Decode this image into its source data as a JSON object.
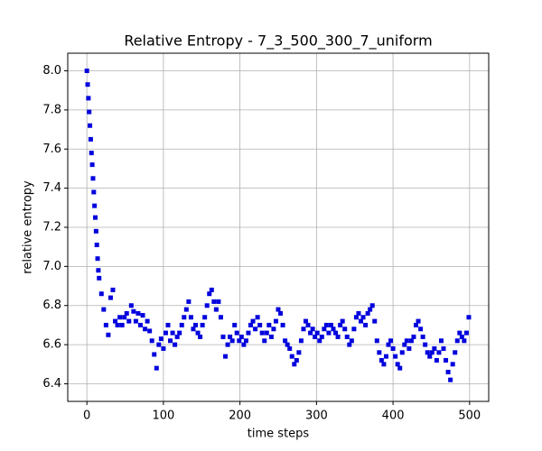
{
  "chart_data": {
    "type": "scatter",
    "title": "Relative Entropy - 7_3_500_300_7_uniform",
    "xlabel": "time steps",
    "ylabel": "relative entropy",
    "xlim": [
      -25,
      525
    ],
    "ylim": [
      6.31,
      8.09
    ],
    "xticks": [
      0,
      100,
      200,
      300,
      400,
      500
    ],
    "yticks": [
      6.4,
      6.6,
      6.8,
      {
        "value": 7,
        "label": "7.0"
      },
      7.2,
      7.4,
      7.6,
      7.8,
      {
        "value": 8,
        "label": "8.0"
      }
    ],
    "grid": true,
    "series": [
      {
        "color": "#0000dd",
        "x": [
          0,
          1,
          2,
          3,
          4,
          5,
          6,
          7,
          8,
          9,
          10,
          11,
          12,
          13,
          14,
          15,
          16,
          19,
          22,
          25,
          28,
          31,
          34,
          37,
          40,
          43,
          46,
          49,
          52,
          55,
          58,
          61,
          64,
          67,
          70,
          73,
          76,
          79,
          82,
          85,
          88,
          91,
          94,
          97,
          100,
          103,
          106,
          109,
          112,
          115,
          118,
          121,
          124,
          127,
          130,
          133,
          136,
          139,
          142,
          145,
          148,
          151,
          154,
          157,
          160,
          163,
          166,
          169,
          172,
          175,
          178,
          181,
          184,
          187,
          190,
          193,
          196,
          199,
          202,
          205,
          208,
          211,
          214,
          217,
          220,
          223,
          226,
          229,
          232,
          235,
          238,
          241,
          244,
          247,
          250,
          253,
          256,
          259,
          262,
          265,
          268,
          271,
          274,
          277,
          280,
          283,
          286,
          289,
          292,
          295,
          298,
          301,
          304,
          307,
          310,
          313,
          316,
          319,
          322,
          325,
          328,
          331,
          334,
          337,
          340,
          343,
          346,
          349,
          352,
          355,
          358,
          361,
          364,
          367,
          370,
          373,
          376,
          379,
          382,
          385,
          388,
          391,
          394,
          397,
          400,
          403,
          406,
          409,
          412,
          415,
          418,
          421,
          424,
          427,
          430,
          433,
          436,
          439,
          442,
          445,
          448,
          451,
          454,
          457,
          460,
          463,
          466,
          469,
          472,
          475,
          478,
          481,
          484,
          487,
          490,
          493,
          496,
          499
        ],
        "values": [
          8.0,
          7.93,
          7.86,
          7.79,
          7.72,
          7.65,
          7.58,
          7.52,
          7.45,
          7.38,
          7.31,
          7.25,
          7.18,
          7.11,
          7.04,
          6.98,
          6.94,
          6.86,
          6.78,
          6.7,
          6.65,
          6.84,
          6.88,
          6.72,
          6.7,
          6.74,
          6.7,
          6.74,
          6.76,
          6.72,
          6.8,
          6.77,
          6.72,
          6.76,
          6.7,
          6.75,
          6.68,
          6.72,
          6.67,
          6.62,
          6.55,
          6.48,
          6.6,
          6.63,
          6.58,
          6.66,
          6.7,
          6.62,
          6.66,
          6.6,
          6.64,
          6.66,
          6.7,
          6.74,
          6.78,
          6.82,
          6.74,
          6.68,
          6.7,
          6.66,
          6.64,
          6.7,
          6.74,
          6.8,
          6.86,
          6.88,
          6.82,
          6.78,
          6.82,
          6.74,
          6.64,
          6.54,
          6.6,
          6.64,
          6.62,
          6.7,
          6.66,
          6.62,
          6.64,
          6.6,
          6.62,
          6.66,
          6.7,
          6.72,
          6.68,
          6.74,
          6.7,
          6.66,
          6.62,
          6.66,
          6.7,
          6.64,
          6.68,
          6.72,
          6.78,
          6.76,
          6.7,
          6.62,
          6.6,
          6.58,
          6.54,
          6.5,
          6.52,
          6.56,
          6.62,
          6.68,
          6.72,
          6.7,
          6.66,
          6.68,
          6.64,
          6.66,
          6.62,
          6.64,
          6.68,
          6.7,
          6.66,
          6.7,
          6.68,
          6.66,
          6.64,
          6.7,
          6.72,
          6.68,
          6.64,
          6.6,
          6.62,
          6.68,
          6.74,
          6.76,
          6.72,
          6.74,
          6.7,
          6.76,
          6.78,
          6.8,
          6.72,
          6.62,
          6.56,
          6.52,
          6.5,
          6.54,
          6.6,
          6.62,
          6.58,
          6.54,
          6.5,
          6.48,
          6.56,
          6.6,
          6.62,
          6.58,
          6.62,
          6.64,
          6.7,
          6.72,
          6.68,
          6.64,
          6.6,
          6.56,
          6.54,
          6.56,
          6.58,
          6.52,
          6.56,
          6.62,
          6.58,
          6.52,
          6.46,
          6.42,
          6.5,
          6.56,
          6.62,
          6.66,
          6.64,
          6.62,
          6.66,
          6.74
        ]
      }
    ]
  }
}
